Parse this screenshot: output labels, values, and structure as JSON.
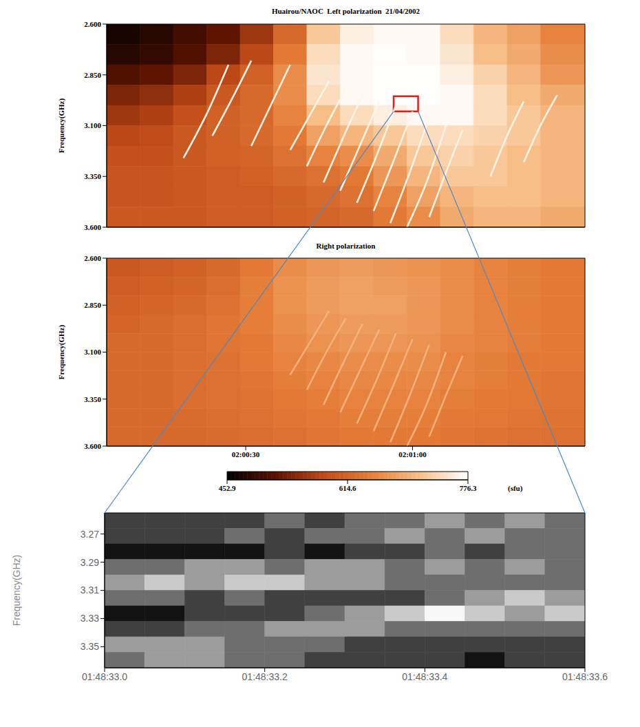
{
  "chart_data": [
    {
      "type": "heatmap",
      "title": "Huairou/NAOC  Left polarization  21/04/2002",
      "y_label": "Frequency(GHz)",
      "xlim": [
        5,
        91
      ],
      "xticks": [
        30,
        60
      ],
      "tick_labels": "y",
      "ylim": [
        3.6,
        2.6
      ],
      "yticks": [
        {
          "value": 2.6,
          "label": "2.600"
        },
        {
          "value": 2.85,
          "label": "2.850"
        },
        {
          "value": 3.1,
          "label": "3.100"
        },
        {
          "value": 3.35,
          "label": "3.350"
        },
        {
          "value": 3.6,
          "label": "3.600"
        }
      ],
      "x_edges": [
        5,
        11,
        17,
        23,
        29,
        35,
        41,
        47,
        53,
        59,
        65,
        71,
        77,
        83,
        91
      ],
      "y_edges": [
        2.6,
        2.7,
        2.8,
        2.9,
        3.0,
        3.1,
        3.2,
        3.3,
        3.4,
        3.5,
        3.6
      ],
      "cells": [
        [
          470,
          480,
          500,
          520,
          560,
          620,
          720,
          760,
          770,
          770,
          740,
          700,
          680,
          650
        ],
        [
          480,
          490,
          510,
          540,
          580,
          640,
          740,
          770,
          775,
          770,
          750,
          710,
          690,
          660
        ],
        [
          510,
          520,
          540,
          580,
          610,
          660,
          750,
          770,
          775,
          775,
          760,
          730,
          700,
          670
        ],
        [
          540,
          550,
          570,
          600,
          620,
          660,
          740,
          770,
          775,
          775,
          770,
          740,
          710,
          690
        ],
        [
          560,
          570,
          590,
          610,
          620,
          650,
          710,
          740,
          760,
          770,
          770,
          740,
          720,
          700
        ],
        [
          580,
          585,
          600,
          610,
          620,
          640,
          680,
          700,
          720,
          740,
          740,
          730,
          720,
          700
        ],
        [
          590,
          590,
          600,
          610,
          615,
          630,
          650,
          660,
          690,
          720,
          730,
          720,
          710,
          700
        ],
        [
          595,
          595,
          600,
          605,
          610,
          620,
          630,
          640,
          670,
          700,
          720,
          720,
          710,
          700
        ],
        [
          595,
          595,
          600,
          605,
          605,
          610,
          620,
          630,
          650,
          680,
          700,
          710,
          710,
          700
        ],
        [
          600,
          600,
          600,
          605,
          605,
          610,
          615,
          620,
          640,
          660,
          690,
          700,
          700,
          690
        ]
      ],
      "fibers": [
        [
          [
            18.8,
            3.26
          ],
          [
            23.2,
            3.03
          ],
          [
            26.9,
            2.8
          ]
        ],
        [
          [
            24,
            3.15
          ],
          [
            27.5,
            2.97
          ],
          [
            31,
            2.78
          ]
        ],
        [
          [
            31,
            3.2
          ],
          [
            34.5,
            3.0
          ],
          [
            38,
            2.8
          ]
        ],
        [
          [
            38,
            3.22
          ],
          [
            41.5,
            3.05
          ],
          [
            45,
            2.88
          ]
        ],
        [
          [
            41,
            3.3
          ],
          [
            44.5,
            3.1
          ],
          [
            48,
            2.92
          ]
        ],
        [
          [
            44,
            3.38
          ],
          [
            47.5,
            3.16
          ],
          [
            51,
            2.95
          ]
        ],
        [
          [
            47,
            3.42
          ],
          [
            50.5,
            3.2
          ],
          [
            54,
            2.98
          ]
        ],
        [
          [
            50,
            3.48
          ],
          [
            53.5,
            3.25
          ],
          [
            57,
            3.0
          ]
        ],
        [
          [
            53,
            3.52
          ],
          [
            56.5,
            3.28
          ],
          [
            60,
            3.03
          ]
        ],
        [
          [
            56,
            3.58
          ],
          [
            59.5,
            3.33
          ],
          [
            63,
            3.06
          ]
        ],
        [
          [
            59,
            3.6
          ],
          [
            62.5,
            3.38
          ],
          [
            66,
            3.1
          ]
        ],
        [
          [
            63,
            3.55
          ],
          [
            66,
            3.33
          ],
          [
            69,
            3.12
          ]
        ],
        [
          [
            74,
            3.35
          ],
          [
            77,
            3.15
          ],
          [
            80,
            2.98
          ]
        ],
        [
          [
            80,
            3.28
          ],
          [
            83,
            3.1
          ],
          [
            86,
            2.95
          ]
        ]
      ],
      "zoom_box": {
        "x": [
          56.6,
          61
        ],
        "y": [
          2.955,
          3.03
        ]
      }
    },
    {
      "type": "heatmap",
      "title": "Right polarization",
      "y_label": "Frequency(GHz)",
      "xlim": [
        5,
        91
      ],
      "xticks": [
        {
          "value": 30,
          "label": "02:00:30"
        },
        {
          "value": 60,
          "label": "02:01:00"
        }
      ],
      "ylim": [
        3.6,
        2.6
      ],
      "yticks": [
        {
          "value": 2.6,
          "label": "2.600"
        },
        {
          "value": 2.85,
          "label": "2.850"
        },
        {
          "value": 3.1,
          "label": "3.100"
        },
        {
          "value": 3.35,
          "label": "3.350"
        },
        {
          "value": 3.6,
          "label": "3.600"
        }
      ],
      "x_edges": [
        5,
        11,
        17,
        23,
        29,
        35,
        41,
        47,
        53,
        59,
        65,
        71,
        77,
        83,
        91
      ],
      "y_edges": [
        2.6,
        2.7,
        2.8,
        2.9,
        3.0,
        3.1,
        3.2,
        3.3,
        3.4,
        3.5,
        3.6
      ],
      "cells": [
        [
          600,
          605,
          610,
          620,
          640,
          660,
          670,
          675,
          670,
          665,
          660,
          650,
          645,
          640
        ],
        [
          605,
          610,
          615,
          625,
          645,
          665,
          675,
          680,
          675,
          670,
          660,
          650,
          645,
          640
        ],
        [
          610,
          615,
          620,
          630,
          645,
          665,
          675,
          680,
          680,
          670,
          660,
          650,
          645,
          640
        ],
        [
          615,
          620,
          625,
          635,
          645,
          660,
          670,
          675,
          675,
          670,
          660,
          650,
          645,
          640
        ],
        [
          620,
          620,
          625,
          635,
          640,
          655,
          665,
          670,
          670,
          665,
          655,
          650,
          645,
          640
        ],
        [
          620,
          620,
          625,
          630,
          640,
          650,
          655,
          660,
          660,
          660,
          650,
          645,
          640,
          640
        ],
        [
          620,
          620,
          625,
          630,
          635,
          645,
          650,
          655,
          655,
          655,
          650,
          645,
          640,
          635
        ],
        [
          620,
          620,
          625,
          628,
          632,
          640,
          645,
          650,
          650,
          650,
          645,
          640,
          638,
          635
        ],
        [
          620,
          620,
          622,
          625,
          630,
          635,
          640,
          645,
          645,
          645,
          640,
          638,
          635,
          632
        ],
        [
          620,
          620,
          620,
          622,
          625,
          630,
          635,
          640,
          640,
          640,
          635,
          632,
          630,
          630
        ]
      ],
      "fibers": [
        [
          [
            38,
            3.22
          ],
          [
            41.5,
            3.05
          ],
          [
            45,
            2.88
          ]
        ],
        [
          [
            41,
            3.3
          ],
          [
            44.5,
            3.1
          ],
          [
            48,
            2.92
          ]
        ],
        [
          [
            44,
            3.38
          ],
          [
            47.5,
            3.16
          ],
          [
            51,
            2.95
          ]
        ],
        [
          [
            47,
            3.42
          ],
          [
            50.5,
            3.2
          ],
          [
            54,
            2.98
          ]
        ],
        [
          [
            50,
            3.48
          ],
          [
            53.5,
            3.25
          ],
          [
            57,
            3.0
          ]
        ],
        [
          [
            53,
            3.52
          ],
          [
            56.5,
            3.28
          ],
          [
            60,
            3.03
          ]
        ],
        [
          [
            56,
            3.58
          ],
          [
            59.5,
            3.33
          ],
          [
            63,
            3.06
          ]
        ],
        [
          [
            59,
            3.6
          ],
          [
            62.5,
            3.38
          ],
          [
            66,
            3.1
          ]
        ],
        [
          [
            63,
            3.55
          ],
          [
            66,
            3.33
          ],
          [
            69,
            3.12
          ]
        ]
      ],
      "colorbar": {
        "range": [
          452.9,
          776.3
        ],
        "ticks": [
          452.9,
          614.6,
          776.3
        ],
        "label": "(sfu)"
      }
    },
    {
      "type": "contour",
      "y_label": "Frequency(GHz)",
      "xlim": [
        33.0,
        33.6
      ],
      "xticks": [
        {
          "value": 33.0,
          "label": "01:48:33.0"
        },
        {
          "value": 33.2,
          "label": "01:48:33.2"
        },
        {
          "value": 33.4,
          "label": "01:48:33.4"
        },
        {
          "value": 33.6,
          "label": "01:48:33.6"
        }
      ],
      "ylim": [
        3.365,
        3.255
      ],
      "yticks": [
        3.27,
        3.29,
        3.31,
        3.33,
        3.35
      ],
      "x_edges": [
        33.0,
        33.05,
        33.1,
        33.15,
        33.2,
        33.25,
        33.3,
        33.35,
        33.4,
        33.45,
        33.5,
        33.55,
        33.6
      ],
      "y_edges": [
        3.255,
        3.266,
        3.277,
        3.288,
        3.299,
        3.31,
        3.321,
        3.332,
        3.343,
        3.354,
        3.365
      ],
      "zlim": [
        0,
        5
      ],
      "cells": [
        [
          1,
          1,
          1,
          1,
          2,
          1,
          2,
          2,
          3,
          2,
          3,
          2
        ],
        [
          1,
          1,
          1,
          2,
          1,
          2,
          2,
          3,
          2,
          3,
          2,
          2
        ],
        [
          0,
          0,
          0,
          0,
          1,
          0,
          1,
          1,
          2,
          1,
          2,
          2
        ],
        [
          2,
          2,
          3,
          3,
          2,
          3,
          3,
          2,
          3,
          2,
          3,
          2
        ],
        [
          3,
          4,
          3,
          4,
          4,
          3,
          3,
          2,
          2,
          2,
          2,
          2
        ],
        [
          2,
          2,
          1,
          2,
          1,
          1,
          1,
          1,
          2,
          3,
          4,
          3
        ],
        [
          0,
          0,
          1,
          1,
          1,
          2,
          3,
          4,
          5,
          4,
          3,
          4
        ],
        [
          1,
          1,
          2,
          2,
          3,
          3,
          3,
          2,
          2,
          2,
          2,
          2
        ],
        [
          3,
          3,
          3,
          2,
          2,
          2,
          1,
          1,
          1,
          1,
          1,
          1
        ],
        [
          2,
          3,
          3,
          2,
          2,
          1,
          1,
          1,
          1,
          0,
          1,
          1
        ]
      ]
    }
  ]
}
